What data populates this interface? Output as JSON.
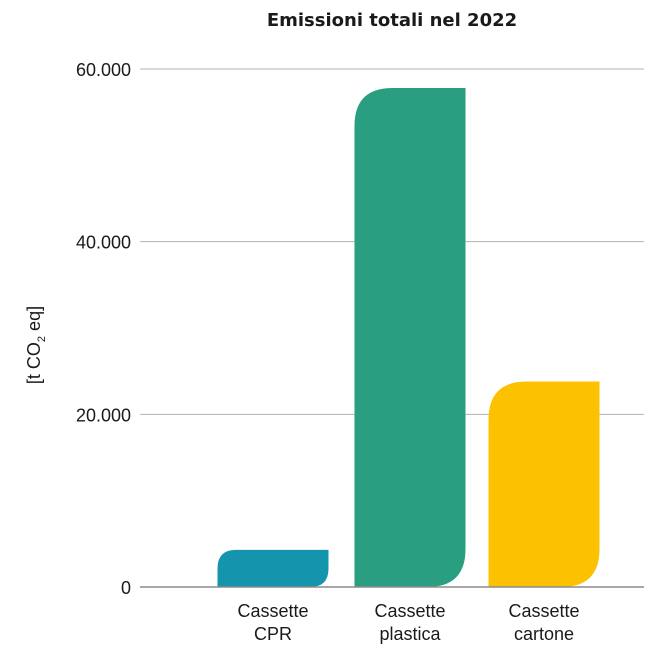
{
  "chart_data": {
    "type": "bar",
    "title": "Emissioni totali nel 2022",
    "ylabel": {
      "prefix": "[t CO",
      "sub": "2",
      "suffix": " eq]"
    },
    "xlabel": "",
    "categories": [
      [
        "Cassette",
        "CPR"
      ],
      [
        "Cassette",
        "plastica"
      ],
      [
        "Cassette",
        "cartone"
      ]
    ],
    "values": [
      4300,
      57800,
      23800
    ],
    "colors": [
      "#1495ad",
      "#2a9e80",
      "#fcc100"
    ],
    "ylim": [
      0,
      60000
    ],
    "yticks": [
      0,
      20000,
      40000,
      60000
    ],
    "ytick_labels": [
      "0",
      "20.000",
      "40.000",
      "60.000"
    ],
    "grid": true,
    "legend": "none"
  }
}
